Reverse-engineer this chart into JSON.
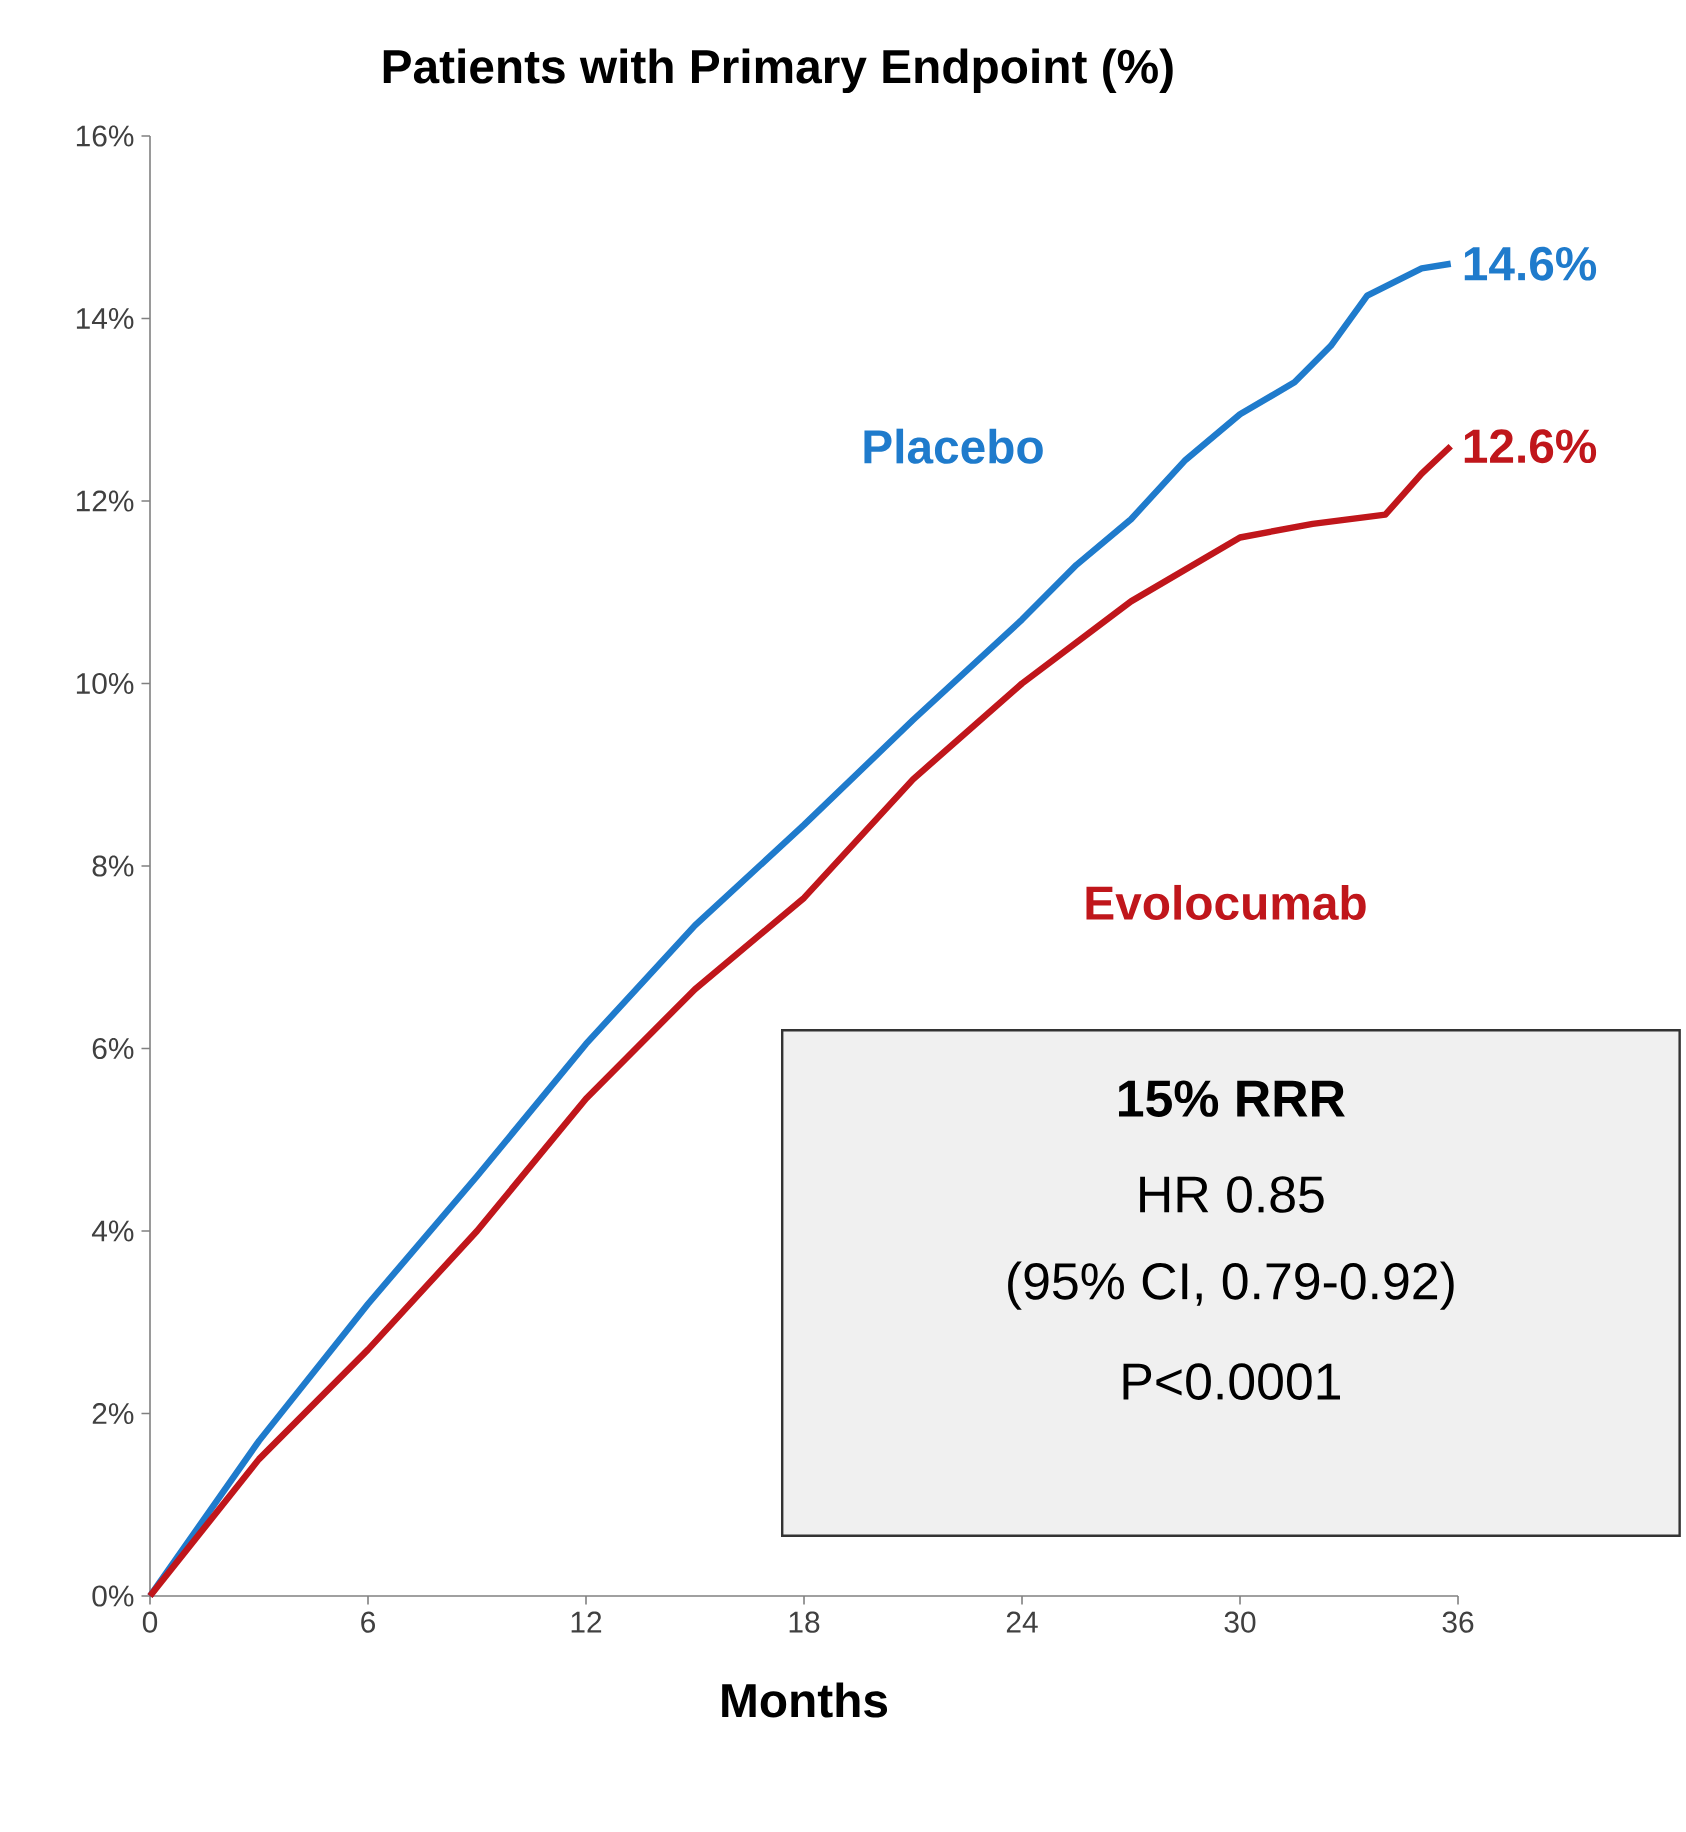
{
  "chart_data": {
    "type": "line",
    "title": "Patients with Primary Endpoint (%)",
    "xlabel": "Months",
    "xlim": [
      0,
      36
    ],
    "xticks": [
      0,
      6,
      12,
      18,
      24,
      30,
      36
    ],
    "ylim": [
      0,
      16
    ],
    "yticks": [
      {
        "value": 0,
        "label": "0%"
      },
      {
        "value": 2,
        "label": "2%"
      },
      {
        "value": 4,
        "label": "4%"
      },
      {
        "value": 6,
        "label": "6%"
      },
      {
        "value": 8,
        "label": "8%"
      },
      {
        "value": 10,
        "label": "10%"
      },
      {
        "value": 12,
        "label": "12%"
      },
      {
        "value": 14,
        "label": "14%"
      },
      {
        "value": 16,
        "label": "16%"
      }
    ],
    "grid": false,
    "legend": false,
    "marker": "none",
    "line_style": "solid",
    "series": [
      {
        "name": "Placebo",
        "color": "#1f7bcc",
        "x": [
          0,
          3,
          6,
          9,
          12,
          15,
          16.5,
          18,
          21,
          24,
          25.5,
          27,
          28.5,
          30,
          31.5,
          32.5,
          33.5,
          35,
          35.8
        ],
        "values": [
          0,
          1.7,
          3.2,
          4.6,
          6.05,
          7.35,
          7.9,
          8.45,
          9.6,
          10.7,
          11.3,
          11.8,
          12.45,
          12.95,
          13.3,
          13.7,
          14.25,
          14.55,
          14.6
        ],
        "value_labels": [
          null,
          null,
          null,
          null,
          null,
          null,
          null,
          null,
          null,
          null,
          null,
          null,
          null,
          null,
          null,
          null,
          null,
          null,
          "14.6%"
        ]
      },
      {
        "name": "Evolocumab",
        "color": "#c0161b",
        "x": [
          0,
          3,
          6,
          9,
          12,
          15,
          18,
          21,
          24,
          27,
          30,
          32,
          34,
          35,
          35.8
        ],
        "values": [
          0,
          1.5,
          2.7,
          4.0,
          5.45,
          6.65,
          7.65,
          8.95,
          10.0,
          10.9,
          11.6,
          11.75,
          11.85,
          12.3,
          12.6
        ],
        "value_labels": [
          null,
          null,
          null,
          null,
          null,
          null,
          null,
          null,
          null,
          null,
          null,
          null,
          null,
          null,
          "12.6%"
        ]
      }
    ],
    "annotations": [
      "15% RRR",
      "HR 0.85",
      "(95% CI, 0.79-0.92)",
      "P<0.0001"
    ]
  }
}
